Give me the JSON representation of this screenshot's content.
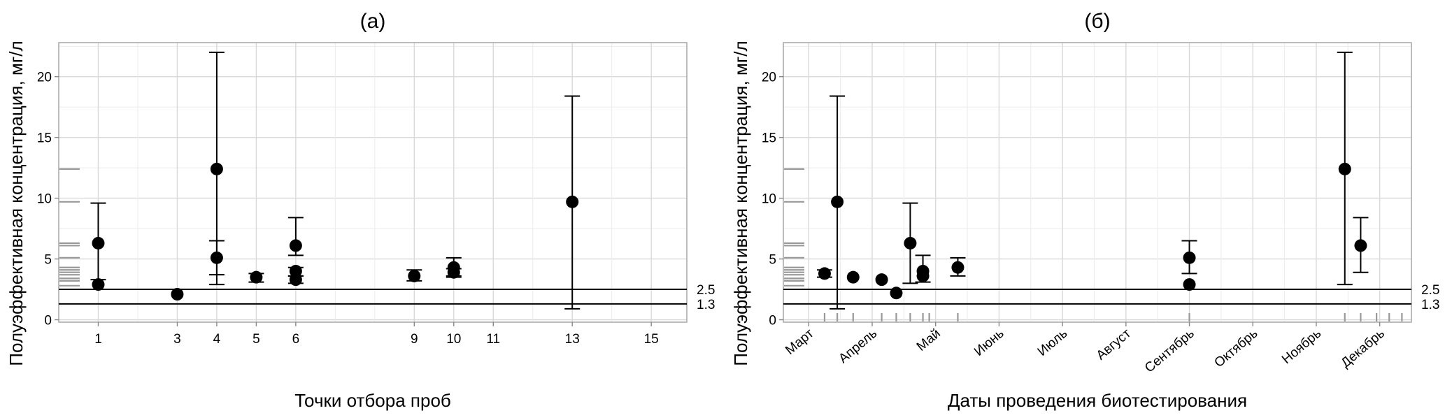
{
  "chart_data": [
    {
      "type": "scatter",
      "title": "(а)",
      "xlabel": "Точки отбора проб",
      "ylabel": "Полуэффективная концентрация, мг/л",
      "xlim": [
        0,
        15.9
      ],
      "ylim": [
        -0.2,
        22.8
      ],
      "xticks": [
        1,
        3,
        4,
        5,
        6,
        9,
        10,
        11,
        13,
        15
      ],
      "yticks": [
        0,
        5,
        10,
        15,
        20
      ],
      "grid": true,
      "hlines": [
        {
          "label": "2.5",
          "value": 2.5
        },
        {
          "label": "1.3",
          "value": 1.3
        }
      ],
      "rug_y": [
        2.8,
        3.2,
        3.4,
        3.7,
        3.9,
        4.1,
        4.3,
        5.1,
        6.1,
        6.3,
        9.7,
        12.4
      ],
      "points": [
        {
          "x": 1,
          "y": 6.3,
          "lo": 3.3,
          "hi": 9.6
        },
        {
          "x": 1,
          "y": 2.9
        },
        {
          "x": 3,
          "y": 2.1
        },
        {
          "x": 4,
          "y": 12.4,
          "lo": 2.9,
          "hi": 22.0
        },
        {
          "x": 4,
          "y": 5.1,
          "lo": 3.7,
          "hi": 6.5
        },
        {
          "x": 5,
          "y": 3.5,
          "lo": 3.1,
          "hi": 3.8
        },
        {
          "x": 6,
          "y": 6.1,
          "lo": 5.3,
          "hi": 8.4
        },
        {
          "x": 6,
          "y": 4.0,
          "lo": 3.6,
          "hi": 4.3
        },
        {
          "x": 6,
          "y": 3.3,
          "lo": 3.0,
          "hi": 3.6
        },
        {
          "x": 9,
          "y": 3.6,
          "lo": 3.2,
          "hi": 4.1
        },
        {
          "x": 10,
          "y": 4.3,
          "lo": 3.6,
          "hi": 5.1
        },
        {
          "x": 10,
          "y": 3.9,
          "lo": 3.5,
          "hi": 4.2
        },
        {
          "x": 13,
          "y": 9.7,
          "lo": 0.9,
          "hi": 18.4
        }
      ]
    },
    {
      "type": "scatter",
      "title": "(б)",
      "xlabel": "Даты проведения биотестирования",
      "ylabel": "Полуэффективная концентрация, мг/л",
      "xlim": [
        -0.4,
        9.5
      ],
      "ylim": [
        -0.2,
        22.8
      ],
      "xticks": [
        {
          "label": "Март",
          "value": 0
        },
        {
          "label": "Апрель",
          "value": 1
        },
        {
          "label": "Май",
          "value": 2
        },
        {
          "label": "Июнь",
          "value": 3
        },
        {
          "label": "Июль",
          "value": 4
        },
        {
          "label": "Август",
          "value": 5
        },
        {
          "label": "Сентябрь",
          "value": 6
        },
        {
          "label": "Октябрь",
          "value": 7
        },
        {
          "label": "Ноябрь",
          "value": 8
        },
        {
          "label": "Декабрь",
          "value": 9
        }
      ],
      "yticks": [
        0,
        5,
        10,
        15,
        20
      ],
      "grid": true,
      "hlines": [
        {
          "label": "2.5",
          "value": 2.5
        },
        {
          "label": "1.3",
          "value": 1.3
        }
      ],
      "rug_y": [
        2.8,
        3.2,
        3.4,
        3.7,
        3.9,
        4.1,
        4.3,
        5.1,
        6.1,
        6.3,
        9.7,
        12.4
      ],
      "rug_x": [
        0.25,
        0.45,
        0.7,
        1.15,
        1.38,
        1.6,
        1.8,
        1.9,
        2.35,
        6.0,
        8.45,
        8.7,
        8.95,
        9.15,
        9.35
      ],
      "points": [
        {
          "x": 0.25,
          "y": 3.8,
          "lo": 3.5,
          "hi": 4.1
        },
        {
          "x": 0.45,
          "y": 9.7,
          "lo": 0.9,
          "hi": 18.4
        },
        {
          "x": 0.7,
          "y": 3.5
        },
        {
          "x": 1.15,
          "y": 3.3
        },
        {
          "x": 1.38,
          "y": 2.2
        },
        {
          "x": 1.6,
          "y": 6.3,
          "lo": 3.0,
          "hi": 9.6
        },
        {
          "x": 1.8,
          "y": 4.0,
          "lo": 3.1,
          "hi": 5.3
        },
        {
          "x": 1.8,
          "y": 3.6
        },
        {
          "x": 2.35,
          "y": 4.3,
          "lo": 3.6,
          "hi": 5.1
        },
        {
          "x": 6.0,
          "y": 5.1,
          "lo": 3.8,
          "hi": 6.5
        },
        {
          "x": 6.0,
          "y": 2.9
        },
        {
          "x": 8.45,
          "y": 12.4,
          "lo": 2.9,
          "hi": 22.0
        },
        {
          "x": 8.7,
          "y": 6.1,
          "lo": 3.9,
          "hi": 8.4
        }
      ]
    }
  ]
}
